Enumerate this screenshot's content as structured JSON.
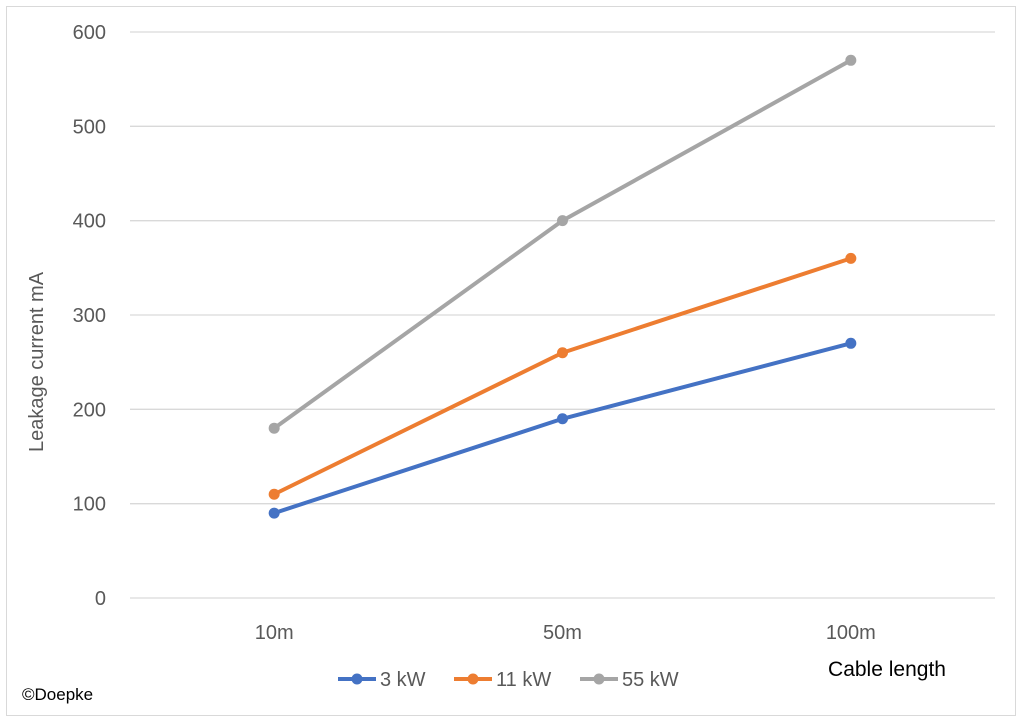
{
  "chart_data": {
    "type": "line",
    "categories": [
      "10m",
      "50m",
      "100m"
    ],
    "series": [
      {
        "name": "3 kW",
        "values": [
          90,
          190,
          270
        ],
        "color": "#4472C4"
      },
      {
        "name": "11 kW",
        "values": [
          110,
          260,
          360
        ],
        "color": "#ED7D31"
      },
      {
        "name": "55 kW",
        "values": [
          180,
          400,
          570
        ],
        "color": "#A5A5A5"
      }
    ],
    "xlabel": "Cable length",
    "ylabel": "Leakage  current mA",
    "ylim": [
      0,
      600
    ],
    "yticks": [
      0,
      100,
      200,
      300,
      400,
      500,
      600
    ],
    "grid": true,
    "legend_position": "bottom"
  },
  "copyright": "©Doepke"
}
